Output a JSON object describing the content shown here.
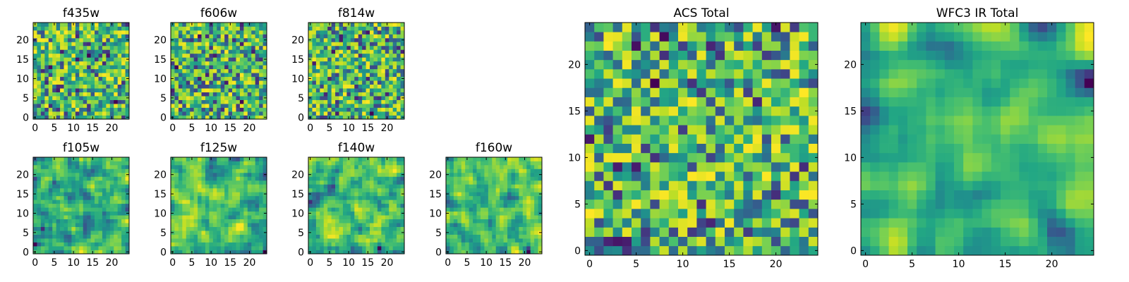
{
  "figure": {
    "background": "#ffffff"
  },
  "chart_data": [
    {
      "type": "heatmap",
      "title": "f435w",
      "grid_size": 25,
      "seed": 11,
      "smooth": 0,
      "xticks": [
        0,
        5,
        10,
        15,
        20
      ],
      "yticks": [
        0,
        5,
        10,
        15,
        20
      ],
      "xlim": [
        -0.5,
        24.5
      ],
      "ylim": [
        -0.5,
        24.5
      ],
      "colormap": "viridis"
    },
    {
      "type": "heatmap",
      "title": "f606w",
      "grid_size": 25,
      "seed": 23,
      "smooth": 0,
      "xticks": [
        0,
        5,
        10,
        15,
        20
      ],
      "yticks": [
        0,
        5,
        10,
        15,
        20
      ],
      "xlim": [
        -0.5,
        24.5
      ],
      "ylim": [
        -0.5,
        24.5
      ],
      "colormap": "viridis"
    },
    {
      "type": "heatmap",
      "title": "f814w",
      "grid_size": 25,
      "seed": 37,
      "smooth": 0,
      "xticks": [
        0,
        5,
        10,
        15,
        20
      ],
      "yticks": [
        0,
        5,
        10,
        15,
        20
      ],
      "xlim": [
        -0.5,
        24.5
      ],
      "ylim": [
        -0.5,
        24.5
      ],
      "colormap": "viridis"
    },
    {
      "type": "heatmap",
      "title": "f105w",
      "grid_size": 25,
      "seed": 41,
      "smooth": 1,
      "xticks": [
        0,
        5,
        10,
        15,
        20
      ],
      "yticks": [
        0,
        5,
        10,
        15,
        20
      ],
      "xlim": [
        -0.5,
        24.5
      ],
      "ylim": [
        -0.5,
        24.5
      ],
      "colormap": "viridis"
    },
    {
      "type": "heatmap",
      "title": "f125w",
      "grid_size": 25,
      "seed": 53,
      "smooth": 1,
      "xticks": [
        0,
        5,
        10,
        15,
        20
      ],
      "yticks": [
        0,
        5,
        10,
        15,
        20
      ],
      "xlim": [
        -0.5,
        24.5
      ],
      "ylim": [
        -0.5,
        24.5
      ],
      "colormap": "viridis"
    },
    {
      "type": "heatmap",
      "title": "f140w",
      "grid_size": 25,
      "seed": 67,
      "smooth": 1,
      "xticks": [
        0,
        5,
        10,
        15,
        20
      ],
      "yticks": [
        0,
        5,
        10,
        15,
        20
      ],
      "xlim": [
        -0.5,
        24.5
      ],
      "ylim": [
        -0.5,
        24.5
      ],
      "colormap": "viridis"
    },
    {
      "type": "heatmap",
      "title": "f160w",
      "grid_size": 25,
      "seed": 79,
      "smooth": 1,
      "xticks": [
        0,
        5,
        10,
        15,
        20
      ],
      "yticks": [
        0,
        5,
        10,
        15,
        20
      ],
      "xlim": [
        -0.5,
        24.5
      ],
      "ylim": [
        -0.5,
        24.5
      ],
      "colormap": "viridis"
    },
    {
      "type": "heatmap",
      "title": "ACS Total",
      "grid_size": 25,
      "seed": 97,
      "smooth": 0,
      "xticks": [
        0,
        5,
        10,
        15,
        20
      ],
      "yticks": [
        0,
        5,
        10,
        15,
        20
      ],
      "xlim": [
        -0.5,
        24.5
      ],
      "ylim": [
        -0.5,
        24.5
      ],
      "colormap": "viridis"
    },
    {
      "type": "heatmap",
      "title": "WFC3 IR Total",
      "grid_size": 25,
      "seed": 113,
      "smooth": 2,
      "xticks": [
        0,
        5,
        10,
        15,
        20
      ],
      "yticks": [
        0,
        5,
        10,
        15,
        20
      ],
      "xlim": [
        -0.5,
        24.5
      ],
      "ylim": [
        -0.5,
        24.5
      ],
      "colormap": "viridis"
    }
  ]
}
